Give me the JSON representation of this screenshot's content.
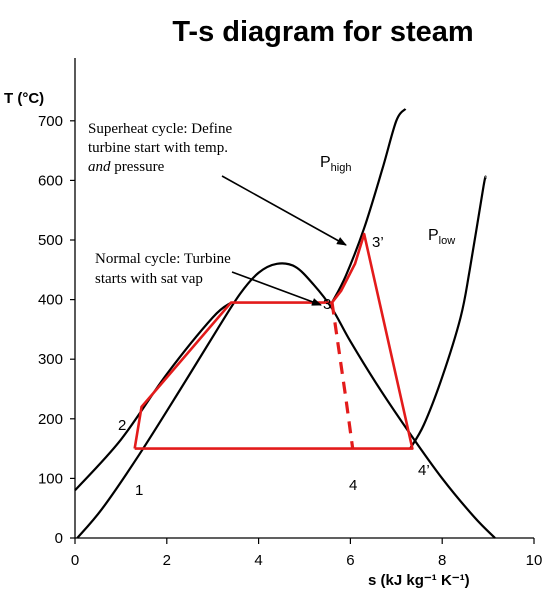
{
  "chart_data": {
    "type": "line",
    "title": "T-s diagram for steam",
    "xlabel": "s (kJ kg⁻¹ K⁻¹)",
    "ylabel": "T (°C)",
    "xlim": [
      0,
      10
    ],
    "ylim": [
      0,
      750
    ],
    "xticks": [
      0,
      2,
      4,
      6,
      8,
      10
    ],
    "yticks": [
      0,
      100,
      200,
      300,
      400,
      500,
      600,
      700
    ],
    "grid": false,
    "colors": {
      "cycle": "#e31b1b",
      "curve": "#000000"
    },
    "series": [
      {
        "style": "dome",
        "points": [
          [
            0.05,
            0
          ],
          [
            0.6,
            50
          ],
          [
            1.4,
            140
          ],
          [
            2.3,
            250
          ],
          [
            3.1,
            350
          ],
          [
            3.6,
            410
          ],
          [
            4.0,
            445
          ],
          [
            4.4,
            460
          ],
          [
            4.8,
            455
          ],
          [
            5.2,
            425
          ],
          [
            5.6,
            385
          ],
          [
            6.0,
            330
          ],
          [
            6.6,
            255
          ],
          [
            7.3,
            175
          ],
          [
            8.0,
            100
          ],
          [
            8.7,
            35
          ],
          [
            9.15,
            0
          ]
        ]
      },
      {
        "style": "isobar-high",
        "points": [
          [
            0,
            80
          ],
          [
            1,
            165
          ],
          [
            2,
            275
          ],
          [
            3,
            370
          ],
          [
            3.4,
            395
          ],
          [
            5.6,
            395
          ],
          [
            5.9,
            440
          ],
          [
            6.3,
            520
          ],
          [
            6.7,
            620
          ],
          [
            7.0,
            700
          ],
          [
            7.2,
            720
          ]
        ]
      },
      {
        "style": "isobar-low",
        "points": [
          [
            7.3,
            150
          ],
          [
            7.6,
            190
          ],
          [
            8.0,
            270
          ],
          [
            8.4,
            370
          ],
          [
            8.6,
            450
          ],
          [
            8.9,
            590
          ],
          [
            8.95,
            605
          ]
        ]
      },
      {
        "style": "cycle",
        "points": [
          [
            1.3,
            150
          ],
          [
            1.45,
            220
          ],
          [
            3.4,
            395
          ],
          [
            5.6,
            395
          ],
          [
            5.8,
            415
          ],
          [
            6.0,
            445
          ],
          [
            6.1,
            460
          ],
          [
            6.3,
            510
          ],
          [
            7.35,
            150
          ],
          [
            1.3,
            150
          ]
        ]
      },
      {
        "style": "cycle-dashed",
        "points": [
          [
            5.6,
            395
          ],
          [
            5.9,
            235
          ],
          [
            6.05,
            150
          ]
        ]
      }
    ],
    "annotations": [
      {
        "text": "P",
        "sub": "high",
        "x": 6.3,
        "y": 620
      },
      {
        "text": "P",
        "sub": "low",
        "x": 7.8,
        "y": 490
      }
    ],
    "point_labels": [
      {
        "text": "1",
        "x": 1.4,
        "y": 75
      },
      {
        "text": "2",
        "x": 1.05,
        "y": 185
      },
      {
        "text": "3",
        "x": 5.5,
        "y": 425
      },
      {
        "text": "3’",
        "x": 6.5,
        "y": 515
      },
      {
        "text": "4",
        "x": 6.05,
        "y": 85
      },
      {
        "text": "4’",
        "x": 7.55,
        "y": 115
      }
    ],
    "callouts": [
      {
        "lines": [
          "Superheat cycle: Define",
          "turbine start with temp.",
          "and pressure"
        ],
        "italic_word": "and",
        "from": [
          3.4,
          610
        ],
        "to": [
          5.9,
          490
        ]
      },
      {
        "lines": [
          "Normal cycle: Turbine",
          "starts with sat vap"
        ],
        "from": [
          3.4,
          445
        ],
        "to": [
          5.5,
          395
        ]
      }
    ]
  }
}
